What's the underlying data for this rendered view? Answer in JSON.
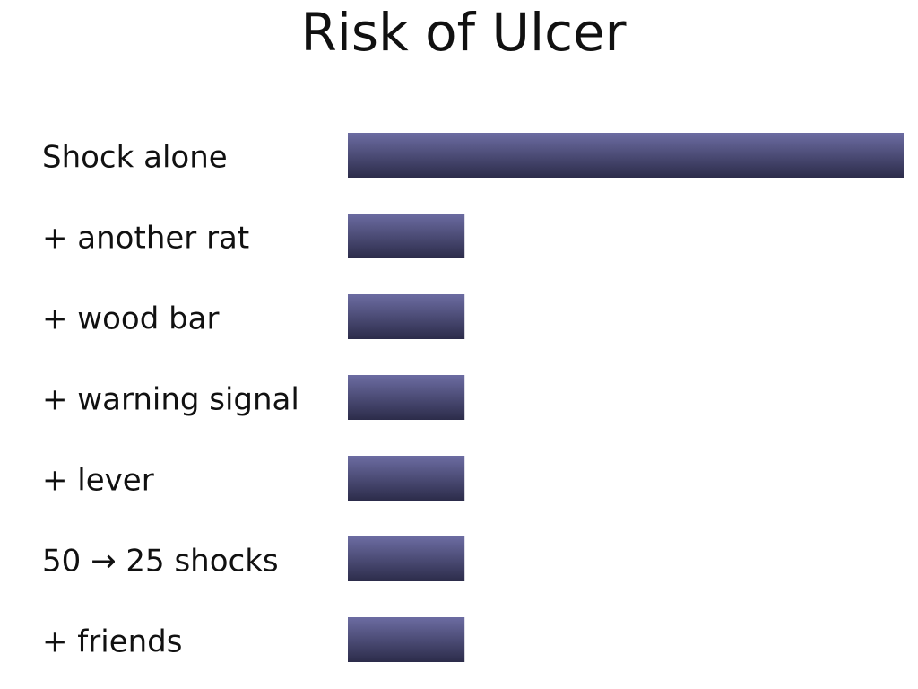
{
  "chart_data": {
    "type": "hbar",
    "title": "Risk of Ulcer",
    "categories": [
      "Shock alone",
      "+ another rat",
      "+ wood bar",
      "+ warning signal",
      "+ lever",
      "50 → 25 shocks",
      "+ friends"
    ],
    "values": [
      100,
      21,
      21,
      21,
      21,
      21,
      21
    ],
    "xlim": [
      0,
      100
    ],
    "color": "#4a4a7a"
  }
}
